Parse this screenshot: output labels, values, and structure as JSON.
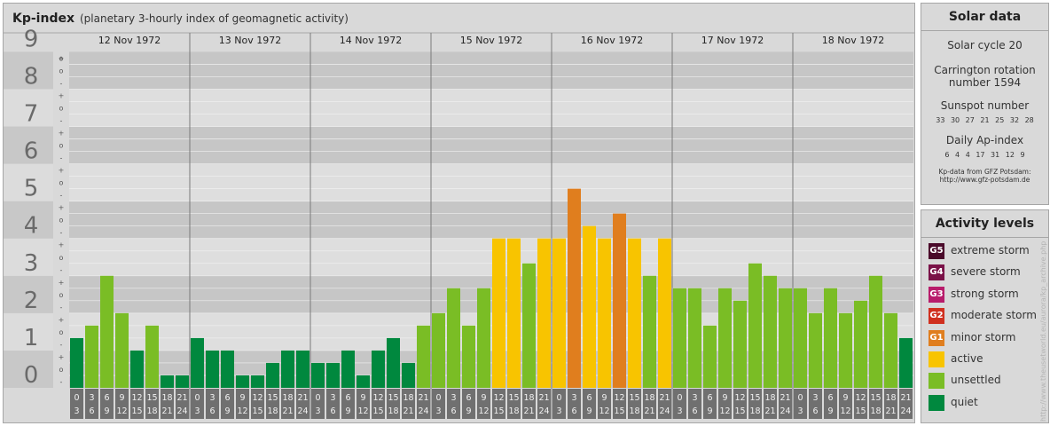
{
  "header": {
    "title": "Kp-index",
    "subtitle": "(planetary 3-hourly index of geomagnetic activity)"
  },
  "chart_data": {
    "type": "bar",
    "ylim": [
      0,
      9
    ],
    "y_tick_labels": [
      "0",
      "1",
      "2",
      "3",
      "4",
      "5",
      "6",
      "7",
      "8",
      "9"
    ],
    "minor_marks": [
      "-",
      "o",
      "+"
    ],
    "days": [
      "12 Nov 1972",
      "13 Nov 1972",
      "14 Nov 1972",
      "15 Nov 1972",
      "16 Nov 1972",
      "17 Nov 1972",
      "18 Nov 1972"
    ],
    "interval_start": [
      "0",
      "3",
      "6",
      "9",
      "12",
      "15",
      "18",
      "21"
    ],
    "interval_end": [
      "3",
      "6",
      "9",
      "12",
      "15",
      "18",
      "21",
      "24"
    ],
    "values": [
      [
        1.333,
        1.667,
        3.0,
        2.0,
        1.0,
        1.667,
        0.333,
        0.333
      ],
      [
        1.333,
        1.0,
        1.0,
        0.333,
        0.333,
        0.667,
        1.0,
        1.0
      ],
      [
        0.667,
        0.667,
        1.0,
        0.333,
        1.0,
        1.333,
        0.667,
        1.667
      ],
      [
        2.0,
        2.667,
        1.667,
        2.667,
        4.0,
        4.0,
        3.333,
        4.0
      ],
      [
        4.0,
        5.333,
        4.333,
        4.0,
        4.667,
        4.0,
        3.0,
        4.0
      ],
      [
        2.667,
        2.667,
        1.667,
        2.667,
        2.333,
        3.333,
        3.0,
        2.667
      ],
      [
        2.667,
        2.0,
        2.667,
        2.0,
        2.333,
        3.0,
        2.0,
        1.333
      ]
    ]
  },
  "solar": {
    "title": "Solar data",
    "cycle": "Solar cycle 20",
    "carrington_1": "Carrington rotation",
    "carrington_2": "number 1594",
    "sunspot_title": "Sunspot number",
    "sunspot_values": "33 30 27 21 25 32 28",
    "ap_title": "Daily Ap-index",
    "ap_values": "6 4 4 17 31 12 9",
    "credit_1": "Kp-data from GFZ Potsdam:",
    "credit_2": "http://www.gfz-potsdam.de"
  },
  "legend": {
    "title": "Activity levels",
    "items": [
      {
        "code": "G5",
        "label": "extreme storm",
        "color": "#4a0a2a"
      },
      {
        "code": "G4",
        "label": "severe storm",
        "color": "#7a1248"
      },
      {
        "code": "G3",
        "label": "strong storm",
        "color": "#b81c6b"
      },
      {
        "code": "G2",
        "label": "moderate storm",
        "color": "#d0301f"
      },
      {
        "code": "G1",
        "label": "minor storm",
        "color": "#e07e1e"
      },
      {
        "code": "",
        "label": "active",
        "color": "#f8c400"
      },
      {
        "code": "",
        "label": "unsettled",
        "color": "#7abd25"
      },
      {
        "code": "",
        "label": "quiet",
        "color": "#00883e"
      }
    ]
  },
  "watermark": "http://www.theusetworld.eu/aurora/kp_archive.php"
}
